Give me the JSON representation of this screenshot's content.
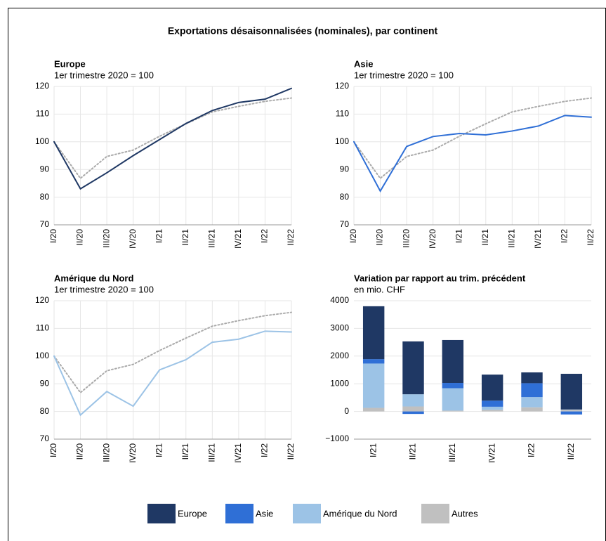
{
  "title": "Exportations désaisonnalisées (nominales), par continent",
  "chart_data": [
    {
      "type": "line",
      "title": "Europe",
      "subtitle": "1er trimestre 2020 = 100",
      "categories": [
        "I/20",
        "II/20",
        "III/20",
        "IV/20",
        "I/21",
        "II/21",
        "III/21",
        "IV/21",
        "I/22",
        "II/22"
      ],
      "series": [
        {
          "color": "#1f3864",
          "style": "solid",
          "values": [
            100,
            83,
            88.8,
            95,
            100.8,
            106.6,
            111.3,
            114.2,
            115.4,
            119.3
          ]
        },
        {
          "color": "#aaaaaa",
          "style": "dotted",
          "values": [
            100,
            86.8,
            94.7,
            97,
            102,
            106.5,
            110.8,
            112.8,
            114.6,
            115.8
          ]
        }
      ],
      "ylim": [
        70,
        120
      ],
      "yticks": [
        70,
        80,
        90,
        100,
        110,
        120
      ],
      "grid": true
    },
    {
      "type": "line",
      "title": "Asie",
      "subtitle": "1er trimestre 2020 = 100",
      "categories": [
        "I/20",
        "II/20",
        "III/20",
        "IV/20",
        "I/21",
        "II/21",
        "III/21",
        "IV/21",
        "I/22",
        "II/22"
      ],
      "series": [
        {
          "color": "#2f6fd6",
          "style": "solid",
          "values": [
            100,
            82.2,
            98.3,
            101.9,
            103,
            102.5,
            103.9,
            105.7,
            109.5,
            108.9
          ]
        },
        {
          "color": "#aaaaaa",
          "style": "dotted",
          "values": [
            100,
            86.8,
            94.7,
            97,
            102,
            106.5,
            110.8,
            112.8,
            114.6,
            115.8
          ]
        }
      ],
      "ylim": [
        70,
        120
      ],
      "yticks": [
        70,
        80,
        90,
        100,
        110,
        120
      ],
      "grid": true
    },
    {
      "type": "line",
      "title": "Amérique du Nord",
      "subtitle": "1er trimestre 2020 = 100",
      "categories": [
        "I/20",
        "II/20",
        "III/20",
        "IV/20",
        "I/21",
        "II/21",
        "III/21",
        "IV/21",
        "I/22",
        "II/22"
      ],
      "series": [
        {
          "color": "#9cc3e6",
          "style": "solid",
          "values": [
            100,
            78.7,
            87.2,
            81.9,
            95,
            98.7,
            105,
            106.1,
            109,
            108.7
          ]
        },
        {
          "color": "#aaaaaa",
          "style": "dotted",
          "values": [
            100,
            86.8,
            94.7,
            97,
            102,
            106.5,
            110.8,
            112.8,
            114.6,
            115.8
          ]
        }
      ],
      "ylim": [
        70,
        120
      ],
      "yticks": [
        70,
        80,
        90,
        100,
        110,
        120
      ],
      "grid": true
    },
    {
      "type": "stacked_bar",
      "title": "Variation par rapport au trim. précédent",
      "subtitle": "en mio. CHF",
      "categories": [
        "I/21",
        "II/21",
        "III/21",
        "IV/21",
        "I/22",
        "II/22"
      ],
      "series": [
        {
          "name": "Europe",
          "color": "#1f3864",
          "values": [
            1910,
            1910,
            1550,
            940,
            390,
            1290
          ]
        },
        {
          "name": "Asie",
          "color": "#2f6fd6",
          "values": [
            160,
            -90,
            190,
            220,
            500,
            -110
          ]
        },
        {
          "name": "Amérique du Nord",
          "color": "#9cc3e6",
          "values": [
            1600,
            440,
            810,
            110,
            370,
            10
          ]
        },
        {
          "name": "Autres",
          "color": "#c0c0c0",
          "values": [
            130,
            180,
            30,
            60,
            150,
            60
          ]
        }
      ],
      "ylim": [
        -1000,
        4000
      ],
      "yticks": [
        {
          "value": -1000,
          "label": "−1000"
        },
        0,
        1000,
        2000,
        3000,
        4000
      ],
      "grid": true
    }
  ]
}
